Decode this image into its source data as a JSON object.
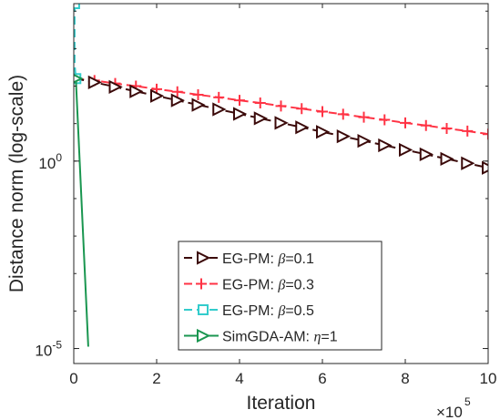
{
  "chart_data": {
    "type": "line",
    "xlabel": "Iteration",
    "ylabel": "Distance norm (log-scale)",
    "x_multiplier_label": {
      "base": "×10",
      "exp": "5"
    },
    "xlim": [
      0,
      10
    ],
    "ylim_log10": [
      -5.4,
      4.2
    ],
    "yscale": "log",
    "grid": false,
    "legend_position": "bottom-center",
    "x_ticks": [
      0,
      2,
      4,
      6,
      8,
      10
    ],
    "x_tick_labels": [
      "0",
      "2",
      "4",
      "6",
      "8",
      "10"
    ],
    "y_ticks": [
      {
        "log10": 0,
        "base": "10",
        "exp": "0"
      },
      {
        "log10": -5,
        "base": "10",
        "exp": "-5"
      }
    ],
    "series": [
      {
        "name": "EG-PM: β=0.1",
        "legend_prefix": "EG-PM: ",
        "legend_symbol": "β",
        "legend_suffix": "=0.1",
        "color": "#3b0a0a",
        "marker": "triangle-right",
        "x": [
          0.05,
          0.5,
          1.0,
          1.5,
          2.0,
          2.5,
          3.0,
          3.5,
          4.0,
          4.5,
          5.0,
          5.5,
          6.0,
          6.5,
          7.0,
          7.5,
          8.0,
          8.5,
          9.0,
          9.5,
          10.0
        ],
        "log10_y": [
          2.2,
          2.1,
          1.98,
          1.86,
          1.74,
          1.62,
          1.5,
          1.38,
          1.26,
          1.14,
          1.02,
          0.9,
          0.78,
          0.66,
          0.54,
          0.42,
          0.3,
          0.18,
          0.06,
          -0.06,
          -0.18
        ]
      },
      {
        "name": "EG-PM: β=0.3",
        "legend_prefix": "EG-PM: ",
        "legend_symbol": "β",
        "legend_suffix": "=0.3",
        "color": "#ff3344",
        "marker": "plus",
        "x": [
          0.05,
          0.5,
          1.0,
          1.5,
          2.0,
          2.5,
          3.0,
          3.5,
          4.0,
          4.5,
          5.0,
          5.5,
          6.0,
          6.5,
          7.0,
          7.5,
          8.0,
          8.5,
          9.0,
          9.5,
          10.0
        ],
        "log10_y": [
          2.2,
          2.15,
          2.07,
          2.0,
          1.92,
          1.85,
          1.77,
          1.7,
          1.62,
          1.55,
          1.47,
          1.4,
          1.32,
          1.25,
          1.17,
          1.1,
          1.02,
          0.95,
          0.87,
          0.8,
          0.72
        ]
      },
      {
        "name": "EG-PM: β=0.5",
        "legend_prefix": "EG-PM: ",
        "legend_symbol": "β",
        "legend_suffix": "=0.5",
        "color": "#33cccc",
        "marker": "square",
        "x": [
          0.02,
          0.02,
          0.02,
          0.05
        ],
        "log10_y": [
          4.2,
          3.3,
          2.6,
          2.2
        ]
      },
      {
        "name": "SimGDA-AM: η=1",
        "legend_prefix": "SimGDA-AM: ",
        "legend_symbol": "η",
        "legend_suffix": "=1",
        "color": "#1a9650",
        "marker": "triangle-right",
        "x": [
          0.05,
          0.35
        ],
        "log10_y": [
          2.2,
          -4.95
        ]
      }
    ]
  }
}
